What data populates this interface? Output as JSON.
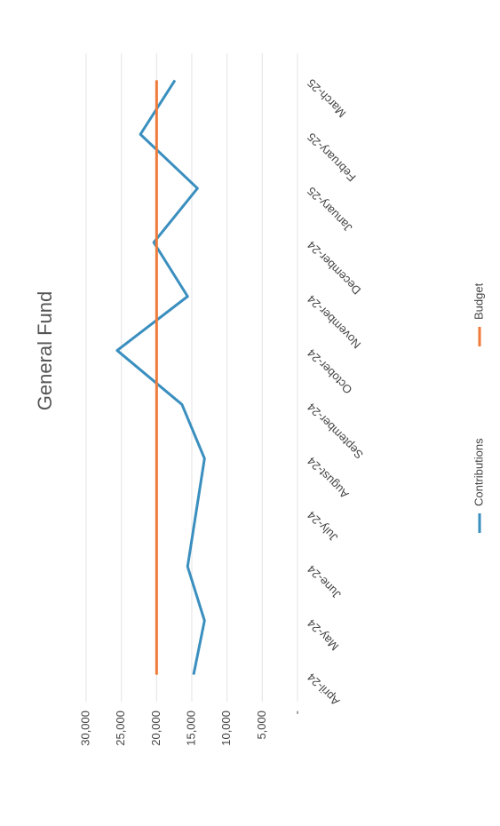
{
  "chart_data": {
    "type": "line",
    "title": "General Fund",
    "categories": [
      "April-24",
      "May-24",
      "June-24",
      "July-24",
      "August-24",
      "September-24",
      "October-24",
      "November-24",
      "December-24",
      "January-25",
      "February-25",
      "March-25"
    ],
    "series": [
      {
        "name": "Contributions",
        "color": "#3a8fbf",
        "values": [
          14750,
          13200,
          15600,
          14400,
          13200,
          16400,
          25600,
          15600,
          20400,
          14200,
          22300,
          17400
        ]
      },
      {
        "name": "Budget",
        "color": "#f07a3a",
        "values": [
          20000,
          20000,
          20000,
          20000,
          20000,
          20000,
          20000,
          20000,
          20000,
          20000,
          20000,
          20000
        ]
      }
    ],
    "ylim": [
      0,
      30000
    ],
    "yticks": [
      {
        "value": 0,
        "label": "-"
      },
      {
        "value": 5000,
        "label": "5,000"
      },
      {
        "value": 10000,
        "label": "10,000"
      },
      {
        "value": 15000,
        "label": "15,000"
      },
      {
        "value": 20000,
        "label": "20,000"
      },
      {
        "value": 25000,
        "label": "25,000"
      },
      {
        "value": 30000,
        "label": "30,000"
      }
    ],
    "grid": true,
    "legend": "bottom"
  }
}
